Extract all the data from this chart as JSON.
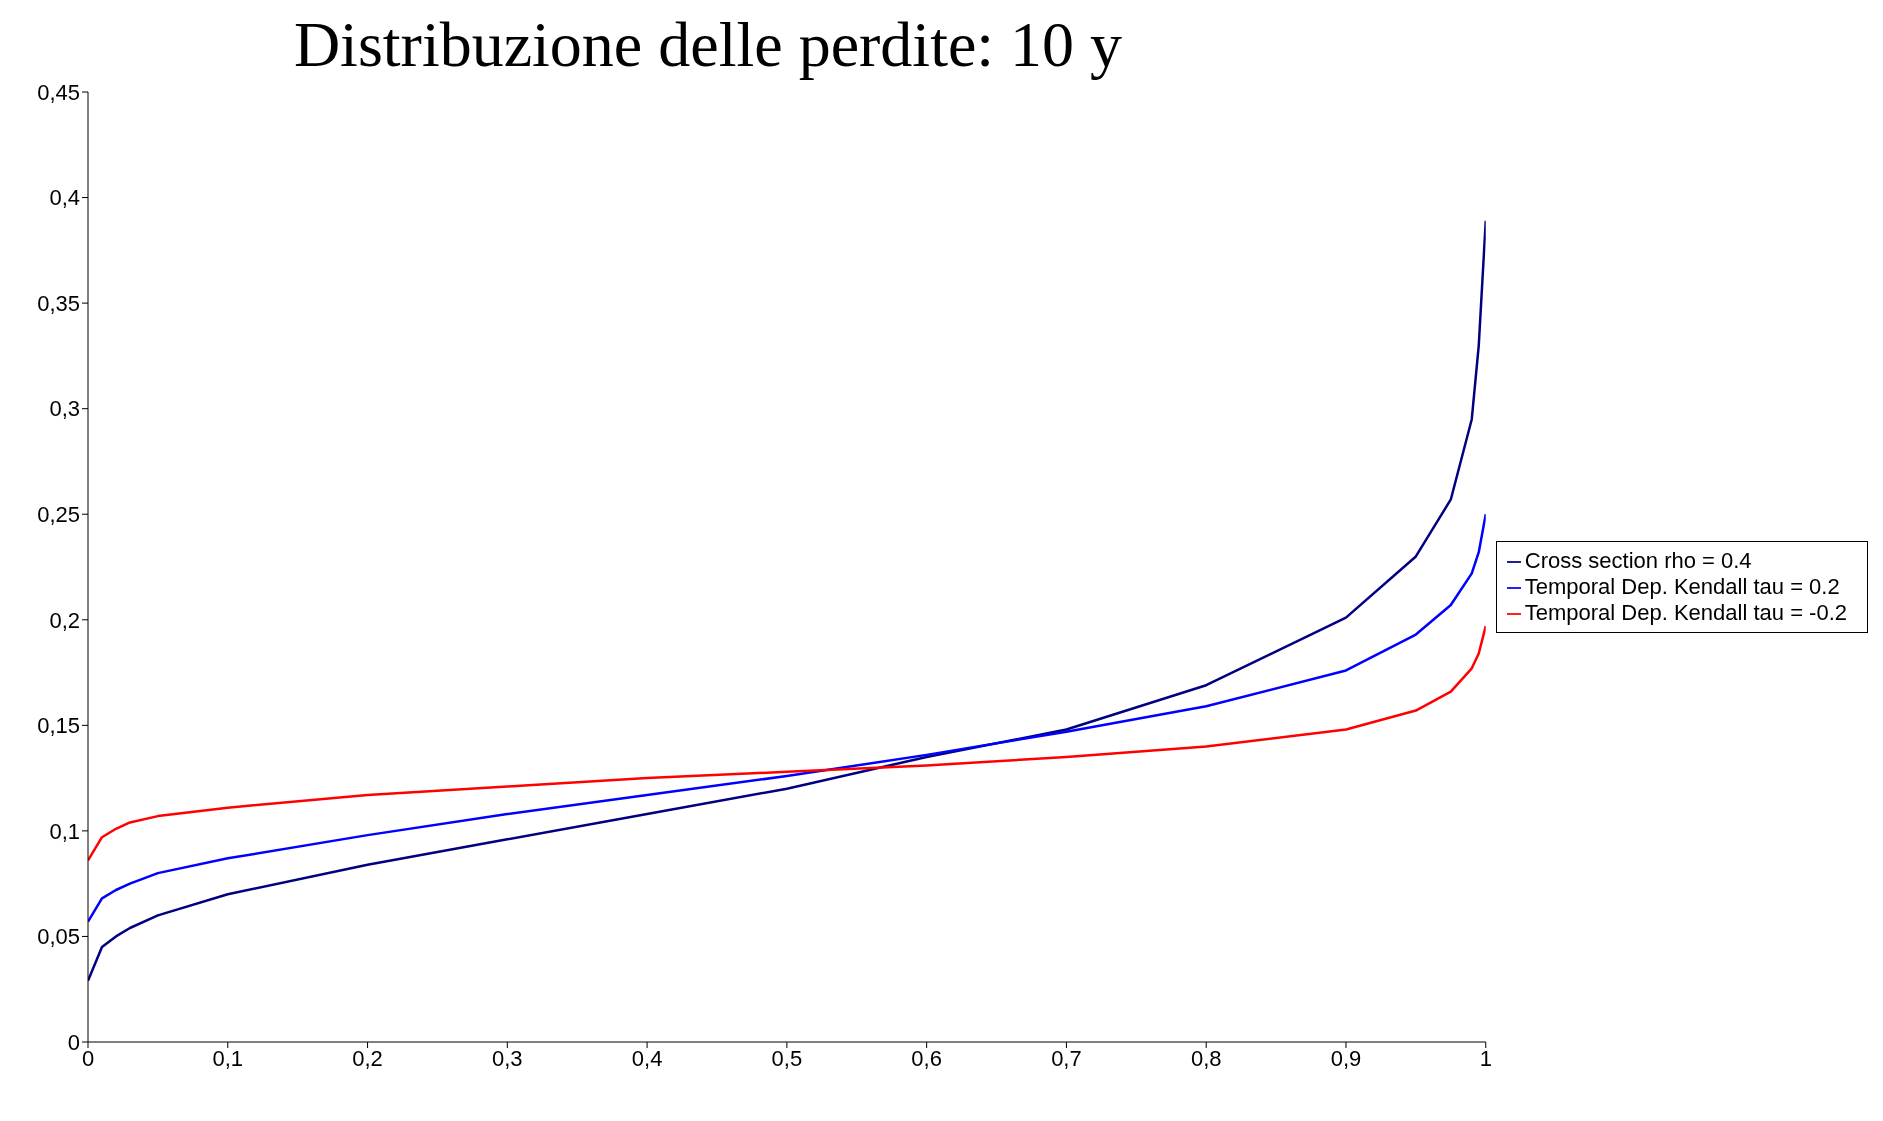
{
  "chart_data": {
    "type": "line",
    "title": "Distribuzione delle perdite: 10 y",
    "x": [
      0,
      0.01,
      0.02,
      0.03,
      0.05,
      0.1,
      0.2,
      0.3,
      0.4,
      0.5,
      0.6,
      0.7,
      0.8,
      0.9,
      0.95,
      0.975,
      0.99,
      0.995,
      1
    ],
    "series": [
      {
        "name": "Cross section rho = 0.4",
        "color": "#000080",
        "values": [
          0.029,
          0.045,
          0.05,
          0.054,
          0.06,
          0.07,
          0.084,
          0.096,
          0.108,
          0.12,
          0.135,
          0.148,
          0.169,
          0.201,
          0.23,
          0.257,
          0.295,
          0.33,
          0.389
        ]
      },
      {
        "name": "Temporal Dep. Kendall tau = 0.2",
        "color": "#0000ff",
        "values": [
          0.057,
          0.068,
          0.072,
          0.075,
          0.08,
          0.087,
          0.098,
          0.108,
          0.117,
          0.126,
          0.136,
          0.147,
          0.159,
          0.176,
          0.193,
          0.207,
          0.222,
          0.232,
          0.25
        ]
      },
      {
        "name": "Temporal Dep. Kendall tau = -0.2",
        "color": "#ff0000",
        "values": [
          0.086,
          0.097,
          0.101,
          0.104,
          0.107,
          0.111,
          0.117,
          0.121,
          0.125,
          0.128,
          0.131,
          0.135,
          0.14,
          0.148,
          0.157,
          0.166,
          0.177,
          0.184,
          0.197
        ]
      }
    ],
    "xlim": [
      0,
      1
    ],
    "xticks": [
      0,
      {
        "value": 0.1,
        "label": "0,1"
      },
      {
        "value": 0.2,
        "label": "0,2"
      },
      {
        "value": 0.3,
        "label": "0,3"
      },
      {
        "value": 0.4,
        "label": "0,4"
      },
      {
        "value": 0.5,
        "label": "0,5"
      },
      {
        "value": 0.6,
        "label": "0,6"
      },
      {
        "value": 0.7,
        "label": "0,7"
      },
      {
        "value": 0.8,
        "label": "0,8"
      },
      {
        "value": 0.9,
        "label": "0,9"
      },
      1
    ],
    "ylim": [
      0,
      0.45
    ],
    "yticks": [
      0,
      {
        "value": 0.05,
        "label": "0,05"
      },
      {
        "value": 0.1,
        "label": "0,1"
      },
      {
        "value": 0.15,
        "label": "0,15"
      },
      {
        "value": 0.2,
        "label": "0,2"
      },
      {
        "value": 0.25,
        "label": "0,25"
      },
      {
        "value": 0.3,
        "label": "0,3"
      },
      {
        "value": 0.35,
        "label": "0,35"
      },
      {
        "value": 0.4,
        "label": "0,4"
      },
      {
        "value": 0.45,
        "label": "0,45"
      }
    ],
    "legend": "right",
    "marker": "none",
    "line_style": "solid"
  }
}
